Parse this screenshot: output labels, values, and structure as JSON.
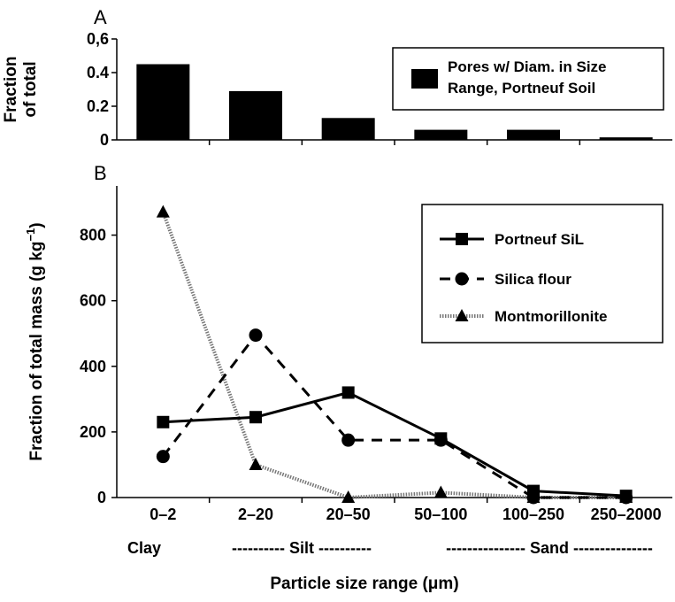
{
  "chart_data": [
    {
      "panel": "A",
      "type": "bar",
      "ylabel_lines": [
        "Fraction",
        "of total"
      ],
      "ylim": [
        0,
        0.6
      ],
      "yticks": [
        {
          "value": 0,
          "label": "0"
        },
        {
          "value": 0.2,
          "label": "0.2"
        },
        {
          "value": 0.4,
          "label": "0.4"
        },
        {
          "value": 0.6,
          "label": "0,6"
        }
      ],
      "categories": [
        "0–2",
        "2–20",
        "20–50",
        "50–100",
        "100–250",
        "250–2000"
      ],
      "series": [
        {
          "name_lines": [
            "Pores w/ Diam. in Size",
            "Range, Portneuf Soil"
          ],
          "color": "#000000",
          "values": [
            0.45,
            0.29,
            0.13,
            0.06,
            0.06,
            0.015
          ]
        }
      ],
      "grid": false,
      "legend": "top-right"
    },
    {
      "panel": "B",
      "type": "line",
      "ylabel": "Fraction of  total mass (g kg",
      "ylabel_sup": "−1",
      "ylabel_close": ")",
      "xlabel": "Particle size  range (μm)",
      "ylim": [
        0,
        950
      ],
      "yticks": [
        0,
        200,
        400,
        600,
        800
      ],
      "categories": [
        "0–2",
        "2–20",
        "20–50",
        "50–100",
        "100–250",
        "250–2000"
      ],
      "series": [
        {
          "name": "Portneuf SiL",
          "marker": "square",
          "line": "solid",
          "values": [
            230,
            245,
            320,
            180,
            20,
            5
          ]
        },
        {
          "name": "Silica flour",
          "marker": "circle",
          "line": "dashed",
          "values": [
            125,
            495,
            175,
            175,
            0,
            0
          ]
        },
        {
          "name": "Montmorillonite",
          "marker": "triangle",
          "line": "dotted",
          "values": [
            870,
            100,
            0,
            15,
            0,
            0
          ]
        }
      ],
      "grid": false,
      "legend": "top-right",
      "size_classes": [
        {
          "name": "Clay",
          "text": "Clay"
        },
        {
          "name": "Silt",
          "text": "---------- Silt ----------"
        },
        {
          "name": "Sand",
          "text": "--------------- Sand ---------------"
        }
      ]
    }
  ]
}
